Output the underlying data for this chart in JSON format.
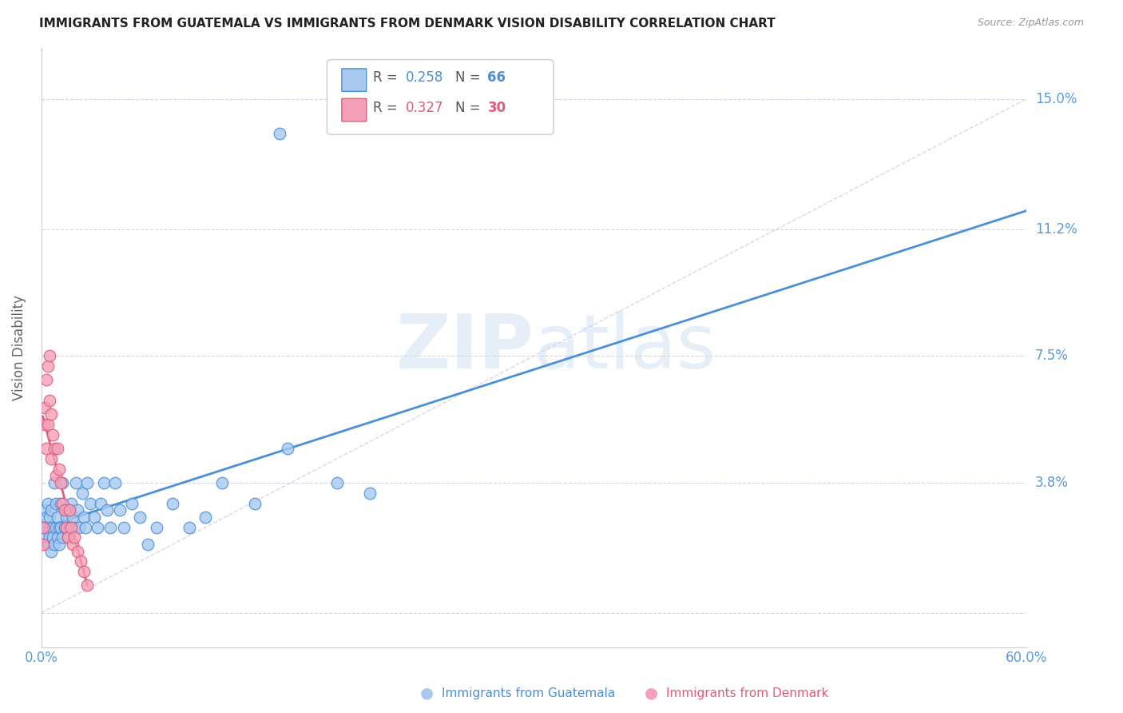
{
  "title": "IMMIGRANTS FROM GUATEMALA VS IMMIGRANTS FROM DENMARK VISION DISABILITY CORRELATION CHART",
  "source": "Source: ZipAtlas.com",
  "ylabel": "Vision Disability",
  "xlim": [
    0.0,
    0.6
  ],
  "ylim": [
    -0.01,
    0.165
  ],
  "yticks": [
    0.0,
    0.038,
    0.075,
    0.112,
    0.15
  ],
  "ytick_labels": [
    "",
    "3.8%",
    "7.5%",
    "11.2%",
    "15.0%"
  ],
  "xticks": [
    0.0,
    0.1,
    0.2,
    0.3,
    0.4,
    0.5,
    0.6
  ],
  "xtick_labels": [
    "0.0%",
    "",
    "",
    "",
    "",
    "",
    "60.0%"
  ],
  "watermark_zip": "ZIP",
  "watermark_atlas": "atlas",
  "legend_R1": "R = 0.258",
  "legend_N1": "N = 66",
  "legend_R2": "R = 0.327",
  "legend_N2": "N = 30",
  "color_guatemala": "#a8c8f0",
  "color_denmark": "#f4a0b8",
  "color_trend_guatemala": "#4a90d9",
  "color_trend_denmark": "#e05c7a",
  "color_diagonal": "#c8c8d8",
  "color_axis_labels": "#5b9bd5",
  "guatemala_x": [
    0.001,
    0.002,
    0.002,
    0.003,
    0.003,
    0.004,
    0.004,
    0.005,
    0.005,
    0.005,
    0.006,
    0.006,
    0.007,
    0.007,
    0.008,
    0.008,
    0.009,
    0.009,
    0.01,
    0.01,
    0.011,
    0.011,
    0.012,
    0.012,
    0.013,
    0.013,
    0.014,
    0.014,
    0.015,
    0.015,
    0.016,
    0.016,
    0.017,
    0.018,
    0.019,
    0.02,
    0.021,
    0.022,
    0.023,
    0.025,
    0.026,
    0.027,
    0.028,
    0.03,
    0.032,
    0.034,
    0.036,
    0.038,
    0.04,
    0.042,
    0.045,
    0.048,
    0.05,
    0.055,
    0.06,
    0.065,
    0.07,
    0.08,
    0.09,
    0.1,
    0.11,
    0.13,
    0.15,
    0.18,
    0.2,
    0.145
  ],
  "guatemala_y": [
    0.025,
    0.022,
    0.03,
    0.028,
    0.025,
    0.032,
    0.02,
    0.028,
    0.025,
    0.022,
    0.03,
    0.018,
    0.025,
    0.022,
    0.038,
    0.02,
    0.032,
    0.025,
    0.028,
    0.022,
    0.025,
    0.02,
    0.032,
    0.025,
    0.038,
    0.022,
    0.03,
    0.025,
    0.028,
    0.025,
    0.022,
    0.03,
    0.025,
    0.032,
    0.028,
    0.025,
    0.038,
    0.03,
    0.025,
    0.035,
    0.028,
    0.025,
    0.038,
    0.032,
    0.028,
    0.025,
    0.032,
    0.038,
    0.03,
    0.025,
    0.038,
    0.03,
    0.025,
    0.032,
    0.028,
    0.02,
    0.025,
    0.032,
    0.025,
    0.028,
    0.038,
    0.032,
    0.048,
    0.038,
    0.035,
    0.14
  ],
  "denmark_x": [
    0.001,
    0.001,
    0.002,
    0.002,
    0.003,
    0.003,
    0.004,
    0.004,
    0.005,
    0.005,
    0.006,
    0.006,
    0.007,
    0.008,
    0.009,
    0.01,
    0.011,
    0.012,
    0.013,
    0.014,
    0.015,
    0.016,
    0.017,
    0.018,
    0.019,
    0.02,
    0.022,
    0.024,
    0.026,
    0.028
  ],
  "denmark_y": [
    0.025,
    0.02,
    0.06,
    0.055,
    0.068,
    0.048,
    0.072,
    0.055,
    0.075,
    0.062,
    0.058,
    0.045,
    0.052,
    0.048,
    0.04,
    0.048,
    0.042,
    0.038,
    0.032,
    0.03,
    0.025,
    0.022,
    0.03,
    0.025,
    0.02,
    0.022,
    0.018,
    0.015,
    0.012,
    0.008
  ]
}
